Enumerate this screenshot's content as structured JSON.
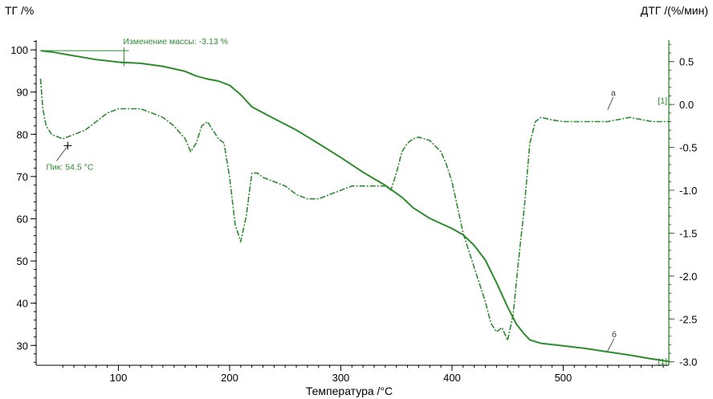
{
  "chart_data": {
    "type": "line",
    "title": "",
    "xlabel": "Температура /°C",
    "ylabel_left": "ТГ /%",
    "ylabel_right": "ДТГ /(%/мин)",
    "xlim": [
      26,
      595
    ],
    "ylim_left": [
      25.3,
      102.3
    ],
    "ylim_right": [
      -3.04,
      0.75
    ],
    "x_ticks": [
      100,
      200,
      300,
      400,
      500
    ],
    "y_left_ticks": [
      30,
      40,
      50,
      60,
      70,
      80,
      90,
      100
    ],
    "y_right_ticks": [
      0.5,
      0.0,
      -0.5,
      -1.0,
      -1.5,
      -2.0,
      -2.5,
      -3.0
    ],
    "y_right_tick_labels": [
      "0.5",
      "0.0",
      "-0.5",
      "-1.0",
      "-1.5",
      "-2.0",
      "-2.5",
      "-3.0"
    ],
    "grid": false,
    "colors": {
      "curve": "#2e8b2e",
      "annotation": "#2e8b2e",
      "axes": "#000000",
      "axis_right": "#1f7a1f"
    },
    "series": [
      {
        "name": "б",
        "axis": "left",
        "style": "solid",
        "x": [
          30,
          40,
          60,
          80,
          100,
          120,
          140,
          160,
          170,
          180,
          190,
          200,
          210,
          220,
          240,
          260,
          280,
          300,
          320,
          340,
          355,
          365,
          380,
          400,
          410,
          420,
          430,
          440,
          450,
          458,
          465,
          470,
          480,
          500,
          520,
          540,
          560,
          580,
          595
        ],
        "values": [
          99.8,
          99.5,
          98.6,
          97.7,
          97.1,
          96.8,
          96.1,
          94.9,
          93.8,
          93.1,
          92.6,
          91.6,
          89.4,
          86.5,
          83.7,
          81.0,
          77.8,
          74.5,
          71.0,
          67.9,
          65.1,
          62.6,
          60.1,
          57.7,
          56.2,
          53.7,
          50.2,
          44.9,
          39.1,
          35.0,
          32.7,
          31.3,
          30.5,
          29.9,
          29.3,
          28.5,
          27.7,
          26.8,
          26.2
        ]
      },
      {
        "name": "а",
        "axis": "right",
        "style": "dash-dot",
        "x": [
          30,
          32,
          35,
          40,
          50,
          60,
          70,
          80,
          90,
          100,
          110,
          120,
          130,
          140,
          150,
          160,
          165,
          170,
          175,
          180,
          185,
          190,
          195,
          200,
          205,
          210,
          215,
          220,
          225,
          230,
          240,
          250,
          260,
          270,
          280,
          290,
          300,
          310,
          320,
          330,
          340,
          345,
          350,
          355,
          360,
          365,
          370,
          380,
          390,
          395,
          400,
          405,
          410,
          415,
          420,
          425,
          430,
          435,
          440,
          445,
          450,
          455,
          460,
          465,
          470,
          475,
          480,
          490,
          500,
          520,
          540,
          560,
          580,
          595
        ],
        "values": [
          0.3,
          -0.05,
          -0.25,
          -0.35,
          -0.4,
          -0.35,
          -0.3,
          -0.2,
          -0.1,
          -0.05,
          -0.05,
          -0.05,
          -0.1,
          -0.15,
          -0.25,
          -0.4,
          -0.55,
          -0.45,
          -0.25,
          -0.2,
          -0.3,
          -0.4,
          -0.45,
          -0.85,
          -1.4,
          -1.6,
          -1.3,
          -0.8,
          -0.8,
          -0.85,
          -0.9,
          -0.95,
          -1.05,
          -1.1,
          -1.1,
          -1.05,
          -1.0,
          -0.95,
          -0.95,
          -0.95,
          -0.95,
          -1.0,
          -0.8,
          -0.55,
          -0.45,
          -0.4,
          -0.38,
          -0.42,
          -0.55,
          -0.7,
          -0.9,
          -1.2,
          -1.5,
          -1.7,
          -1.9,
          -2.1,
          -2.3,
          -2.55,
          -2.65,
          -2.6,
          -2.75,
          -2.45,
          -1.8,
          -1.2,
          -0.45,
          -0.2,
          -0.15,
          -0.18,
          -0.2,
          -0.2,
          -0.2,
          -0.15,
          -0.2,
          -0.2
        ]
      }
    ],
    "annotations": [
      {
        "text": "Изменение массы: -3.13 %",
        "x": 105,
        "axis": "left",
        "y": 102.3
      },
      {
        "text": "Пик: 54.5 °C",
        "x": 54.5,
        "axis": "right",
        "y": -0.48
      },
      {
        "text": "а",
        "x": 540,
        "axis": "right",
        "y": 0.05
      },
      {
        "text": "б",
        "x": 540,
        "axis": "left",
        "y": 32.0
      },
      {
        "text": "[1]",
        "x": 592,
        "axis": "right",
        "y": 0.0
      },
      {
        "text": "[1]",
        "x": 592,
        "axis": "left",
        "y": 28.0
      }
    ]
  }
}
